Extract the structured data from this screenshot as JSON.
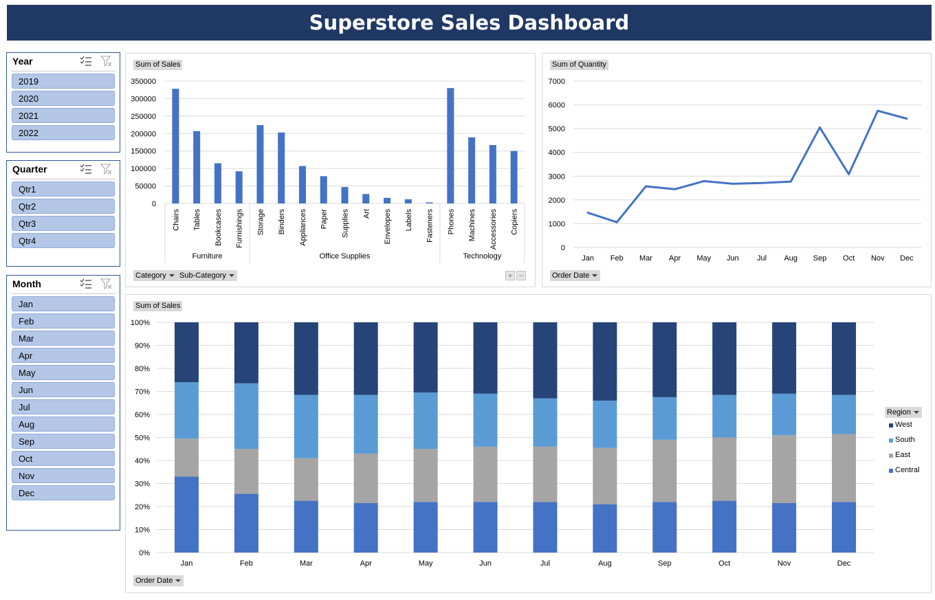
{
  "header": {
    "title": "Superstore Sales Dashboard"
  },
  "slicers": {
    "year": {
      "title": "Year",
      "items": [
        "2019",
        "2020",
        "2021",
        "2022"
      ]
    },
    "quarter": {
      "title": "Quarter",
      "items": [
        "Qtr1",
        "Qtr2",
        "Qtr3",
        "Qtr4"
      ]
    },
    "month": {
      "title": "Month",
      "items": [
        "Jan",
        "Feb",
        "Mar",
        "Apr",
        "May",
        "Jun",
        "Jul",
        "Aug",
        "Sep",
        "Oct",
        "Nov",
        "Dec"
      ]
    }
  },
  "icons": {
    "multi_select": "multi-select-icon",
    "clear_filter": "clear-filter-icon",
    "dropdown": "dropdown-arrow-icon"
  },
  "colors": {
    "brand": "#203864",
    "bar": "#4472c4",
    "slicer_item": "#b4c7e7",
    "west": "#264478",
    "south": "#5b9bd5",
    "east": "#a5a5a5",
    "central": "#4472c4"
  },
  "pivot_buttons": {
    "sales_value": "Sum of Sales",
    "quantity_value": "Sum of Quantity",
    "category": "Category",
    "subcategory": "Sub-Category",
    "order_date": "Order Date",
    "region": "Region",
    "expand": "+",
    "collapse": "−"
  },
  "chart_data": [
    {
      "type": "bar",
      "ylabel": "",
      "ylim": [
        0,
        350000
      ],
      "yticks": [
        0,
        50000,
        100000,
        150000,
        200000,
        250000,
        300000,
        350000
      ],
      "ytick_labels": [
        "0",
        "50000",
        "100000",
        "150000",
        "200000",
        "250000",
        "300000",
        "350000"
      ],
      "groups": [
        {
          "name": "Furniture",
          "categories": [
            "Chairs",
            "Tables",
            "Bookcases",
            "Furnishings"
          ],
          "values": [
            328000,
            207000,
            115000,
            92000
          ]
        },
        {
          "name": "Office Supplies",
          "categories": [
            "Storage",
            "Binders",
            "Appliances",
            "Paper",
            "Supplies",
            "Art",
            "Envelopes",
            "Labels",
            "Fasteners"
          ],
          "values": [
            224000,
            203000,
            107000,
            78000,
            47000,
            27000,
            16000,
            12000,
            3000
          ]
        },
        {
          "name": "Technology",
          "categories": [
            "Phones",
            "Machines",
            "Accessories",
            "Copiers"
          ],
          "values": [
            330000,
            189000,
            167000,
            150000
          ]
        }
      ]
    },
    {
      "type": "line",
      "x": [
        "Jan",
        "Feb",
        "Mar",
        "Apr",
        "May",
        "Jun",
        "Jul",
        "Aug",
        "Sep",
        "Oct",
        "Nov",
        "Dec"
      ],
      "values": [
        1460,
        1060,
        2570,
        2450,
        2790,
        2680,
        2710,
        2770,
        5050,
        3080,
        5750,
        5420
      ],
      "ylim": [
        0,
        7000
      ],
      "yticks": [
        0,
        1000,
        2000,
        3000,
        4000,
        5000,
        6000,
        7000
      ],
      "ytick_labels": [
        "0",
        "1000",
        "2000",
        "3000",
        "4000",
        "5000",
        "6000",
        "7000"
      ]
    },
    {
      "type": "bar",
      "stacked": "percent",
      "categories": [
        "Jan",
        "Feb",
        "Mar",
        "Apr",
        "May",
        "Jun",
        "Jul",
        "Aug",
        "Sep",
        "Oct",
        "Nov",
        "Dec"
      ],
      "ylim": [
        0,
        100
      ],
      "yticks": [
        0,
        10,
        20,
        30,
        40,
        50,
        60,
        70,
        80,
        90,
        100
      ],
      "ytick_labels": [
        "0%",
        "10%",
        "20%",
        "30%",
        "40%",
        "50%",
        "60%",
        "70%",
        "80%",
        "90%",
        "100%"
      ],
      "legend_position": "right",
      "series": [
        {
          "name": "Central",
          "color": "#4472c4",
          "values": [
            33,
            25.5,
            22.5,
            21.5,
            22,
            22,
            22,
            21,
            22,
            22.5,
            21.5,
            22
          ]
        },
        {
          "name": "East",
          "color": "#a5a5a5",
          "values": [
            16.5,
            19.5,
            18.5,
            21.5,
            23,
            24,
            24,
            24.5,
            27,
            27.5,
            29.5,
            29.5
          ]
        },
        {
          "name": "South",
          "color": "#5b9bd5",
          "values": [
            24.5,
            28.5,
            27.5,
            25.5,
            24.5,
            23,
            21,
            20.5,
            18.5,
            18.5,
            18,
            17
          ]
        },
        {
          "name": "West",
          "color": "#264478",
          "values": [
            26,
            26.5,
            31.5,
            31.5,
            30.5,
            31,
            33,
            34,
            32.5,
            31.5,
            31,
            31.5
          ]
        }
      ],
      "legend_order": [
        "West",
        "South",
        "East",
        "Central"
      ]
    }
  ]
}
